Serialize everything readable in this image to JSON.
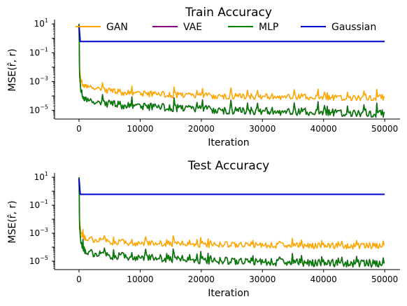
{
  "chart_data": [
    {
      "type": "line",
      "title": "Train Accuracy",
      "xlabel": "Iteration",
      "ylabel": "MSE(r̂, r)",
      "xlim": [
        -4000,
        52500
      ],
      "ylim": [
        2.5e-06,
        16
      ],
      "yscale": "log",
      "xticks": [
        0,
        10000,
        20000,
        30000,
        40000,
        50000
      ],
      "yticks": [
        1e-05,
        0.001,
        0.1,
        10
      ],
      "grid": false,
      "legend": "top, single row",
      "series": [
        {
          "name": "GAN",
          "color": "#FFA500",
          "x": [
            0,
            100,
            300,
            1000,
            3000,
            5000,
            10000,
            15000,
            20000,
            25000,
            30000,
            35000,
            40000,
            45000,
            50000
          ],
          "y": [
            10,
            0.01,
            0.001,
            0.0005,
            0.0003,
            0.0002,
            0.00015,
            0.00012,
            0.0001,
            0.0001,
            9e-05,
            9e-05,
            8e-05,
            8e-05,
            8e-05
          ]
        },
        {
          "name": "VAE",
          "color": "#800080",
          "x": [
            0,
            100,
            300,
            1000,
            3000,
            5000,
            10000,
            15000,
            20000,
            25000,
            30000,
            35000,
            40000,
            45000,
            50000
          ],
          "y": [
            10,
            0.003,
            0.0002,
            6e-05,
            3e-05,
            2.5e-05,
            2e-05,
            1.5e-05,
            1.2e-05,
            1e-05,
            9e-06,
            8e-06,
            7.5e-06,
            7e-06,
            6e-06
          ]
        },
        {
          "name": "MLP",
          "color": "#008000",
          "x": [
            0,
            100,
            300,
            1000,
            3000,
            5000,
            10000,
            15000,
            20000,
            25000,
            30000,
            35000,
            40000,
            45000,
            50000
          ],
          "y": [
            10,
            0.003,
            0.0002,
            6e-05,
            3e-05,
            2.5e-05,
            2e-05,
            1.5e-05,
            1.2e-05,
            1e-05,
            9e-06,
            8e-06,
            7.5e-06,
            7e-06,
            6e-06
          ]
        },
        {
          "name": "Gaussian",
          "color": "#0000CC",
          "x": [
            0,
            200,
            500,
            50000
          ],
          "y": [
            8,
            0.6,
            0.6,
            0.6
          ]
        }
      ]
    },
    {
      "type": "line",
      "title": "Test Accuracy",
      "xlabel": "Iteration",
      "ylabel": "MSE(r̂, r)",
      "xlim": [
        -4000,
        52500
      ],
      "ylim": [
        2.5e-06,
        16
      ],
      "yscale": "log",
      "xticks": [
        0,
        10000,
        20000,
        30000,
        40000,
        50000
      ],
      "yticks": [
        1e-05,
        0.001,
        0.1,
        10
      ],
      "grid": false,
      "legend": "none",
      "series": [
        {
          "name": "GAN",
          "color": "#FFA500",
          "x": [
            0,
            100,
            300,
            1000,
            3000,
            5000,
            10000,
            15000,
            20000,
            25000,
            30000,
            35000,
            40000,
            45000,
            50000
          ],
          "y": [
            10,
            0.01,
            0.001,
            0.0005,
            0.0003,
            0.00025,
            0.0002,
            0.00018,
            0.00016,
            0.00015,
            0.00014,
            0.00013,
            0.00013,
            0.00012,
            0.00012
          ]
        },
        {
          "name": "VAE",
          "color": "#800080",
          "x": [
            0,
            100,
            300,
            1000,
            3000,
            5000,
            10000,
            15000,
            20000,
            25000,
            30000,
            35000,
            40000,
            45000,
            50000
          ],
          "y": [
            10,
            0.003,
            0.0002,
            6e-05,
            3e-05,
            2.5e-05,
            2e-05,
            1.5e-05,
            1.2e-05,
            1e-05,
            9e-06,
            8e-06,
            7.5e-06,
            7e-06,
            6e-06
          ]
        },
        {
          "name": "MLP",
          "color": "#008000",
          "x": [
            0,
            100,
            300,
            1000,
            3000,
            5000,
            10000,
            15000,
            20000,
            25000,
            30000,
            35000,
            40000,
            45000,
            50000
          ],
          "y": [
            10,
            0.003,
            0.0002,
            6e-05,
            3e-05,
            2.5e-05,
            2e-05,
            1.5e-05,
            1.2e-05,
            1e-05,
            9e-06,
            8e-06,
            7.5e-06,
            7e-06,
            6e-06
          ]
        },
        {
          "name": "Gaussian",
          "color": "#0000CC",
          "x": [
            0,
            200,
            500,
            50000
          ],
          "y": [
            8,
            0.6,
            0.6,
            0.6
          ]
        }
      ]
    }
  ]
}
